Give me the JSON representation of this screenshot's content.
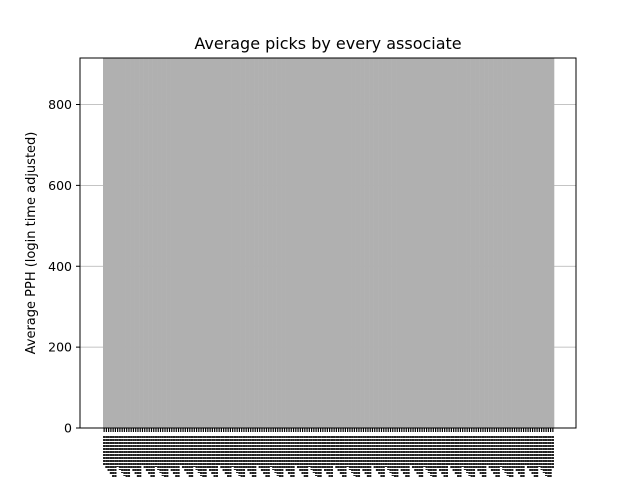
{
  "chart_data": {
    "type": "bar",
    "title": "Average picks by every associate",
    "ylabel": "Average PPH (login time adjusted)",
    "xlabel": "",
    "ylim": [
      0,
      915
    ],
    "yticks": [
      0,
      200,
      400,
      600,
      800
    ],
    "category_count": 200,
    "bar_value": 915,
    "bar_color": "#b0b0b0",
    "grid": true,
    "grid_axis": "y",
    "legend": "none",
    "x_tick_labels_note": "Associate names on the x axis are densely overlapping and illegible"
  }
}
